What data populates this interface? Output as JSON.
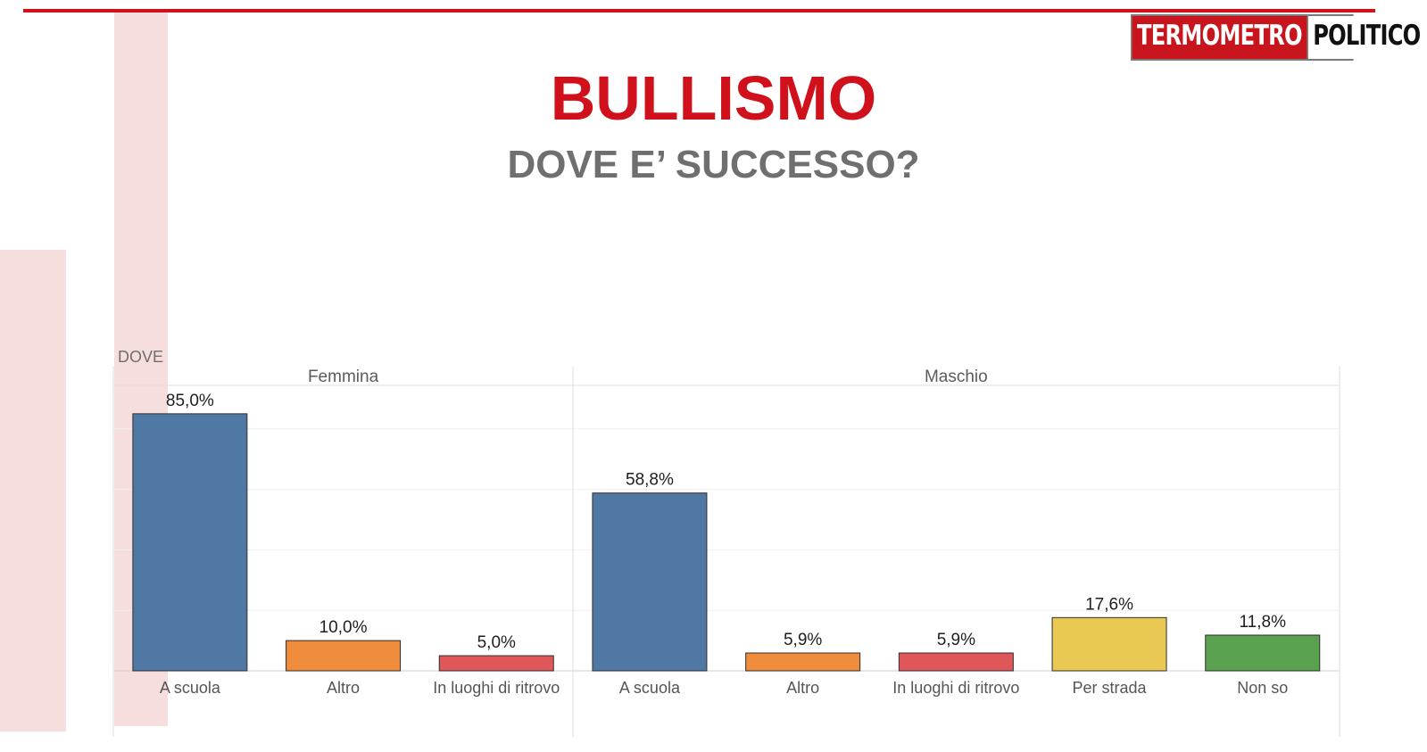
{
  "brand": {
    "part1": "TERMOMETRO",
    "part2": "POLITICO",
    "accent_color": "#d0101a"
  },
  "title": "BULLISMO",
  "subtitle": "DOVE E’ SUCCESSO?",
  "chart_data": {
    "type": "bar",
    "row_label": "DOVE",
    "ylim": [
      0,
      100
    ],
    "grid": true,
    "value_format": "percent_comma_1dp",
    "panels": [
      {
        "name": "Femmina",
        "categories": [
          "A scuola",
          "Altro",
          "In luoghi di ritrovo"
        ],
        "values": [
          85.0,
          10.0,
          5.0
        ],
        "labels": [
          "85,0%",
          "10,0%",
          "5,0%"
        ],
        "colors": [
          "#4f78a5",
          "#f08d3c",
          "#e05759"
        ]
      },
      {
        "name": "Maschio",
        "categories": [
          "A scuola",
          "Altro",
          "In luoghi di ritrovo",
          "Per strada",
          "Non so"
        ],
        "values": [
          58.8,
          5.9,
          5.9,
          17.6,
          11.8
        ],
        "labels": [
          "58,8%",
          "5,9%",
          "5,9%",
          "17,6%",
          "11,8%"
        ],
        "colors": [
          "#4f78a5",
          "#f08d3c",
          "#e05759",
          "#e9c953",
          "#5aa14f"
        ]
      }
    ]
  }
}
